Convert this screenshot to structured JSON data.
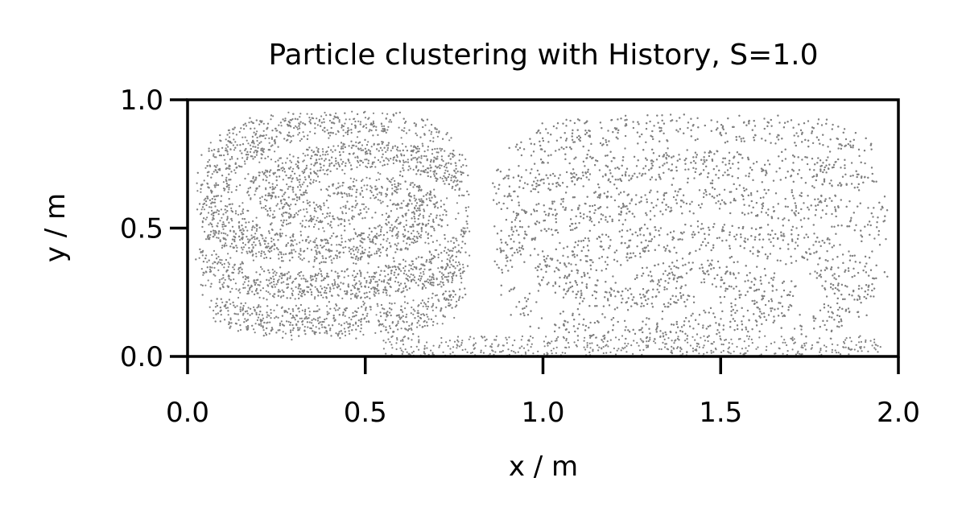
{
  "chart_data": {
    "type": "scatter",
    "title": "Particle clustering with History, S=1.0",
    "xlabel": "x / m",
    "ylabel": "y / m",
    "xlim": [
      0.0,
      2.0
    ],
    "ylim": [
      0.0,
      1.0
    ],
    "xticks": [
      0.0,
      0.5,
      1.0,
      1.5,
      2.0
    ],
    "xtick_labels": [
      "0.0",
      "0.5",
      "1.0",
      "1.5",
      "2.0"
    ],
    "yticks": [
      0.0,
      0.5,
      1.0
    ],
    "ytick_labels": [
      "0.0",
      "0.5",
      "1.0"
    ],
    "grid": false,
    "legend": "none",
    "colors": {
      "points": "#808080",
      "axes": "#000000"
    },
    "clusters": [
      {
        "x_range": [
          0.02,
          0.8
        ],
        "y_range": [
          0.05,
          0.96
        ],
        "center": [
          0.45,
          0.6
        ]
      },
      {
        "x_range": [
          0.85,
          1.98
        ],
        "y_range": [
          0.05,
          0.96
        ],
        "center": [
          1.35,
          0.28
        ]
      }
    ]
  }
}
